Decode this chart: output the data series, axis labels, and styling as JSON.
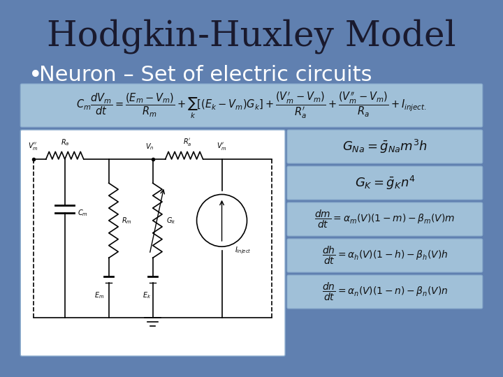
{
  "title": "Hodgkin-Huxley Model",
  "bullet": "Neuron – Set of electric circuits",
  "bg_color": "#6080b0",
  "box_color": "#a0c0d8",
  "title_color": "#1a1a2e",
  "bullet_color": "#ffffff",
  "title_fontsize": 36,
  "bullet_fontsize": 22,
  "formula_main": "$C_m \\dfrac{dV_m}{dt} = \\dfrac{(E_m - V_m)}{R_m} + \\sum_k [(E_k - V_m)G_k] + \\dfrac{(V_m^{\\prime} - V_m)}{R_a^{\\prime}} + \\dfrac{(V_m^{\\prime\\prime} - V_m)}{R_a} + I_{inject.}$",
  "formula_GNa": "$G_{Na} = \\bar{g}_{Na} m^3 h$",
  "formula_GK": "$G_K = \\bar{g}_K n^4$",
  "formula_dm": "$\\dfrac{dm}{dt} = \\alpha_m(V)(1-m) - \\beta_m(V)m$",
  "formula_dh": "$\\dfrac{dh}{dt} = \\alpha_h(V)(1-h) - \\beta_h(V)h$",
  "formula_dn": "$\\dfrac{dn}{dt} = \\alpha_n(V)(1-n) - \\beta_n(V)n$"
}
